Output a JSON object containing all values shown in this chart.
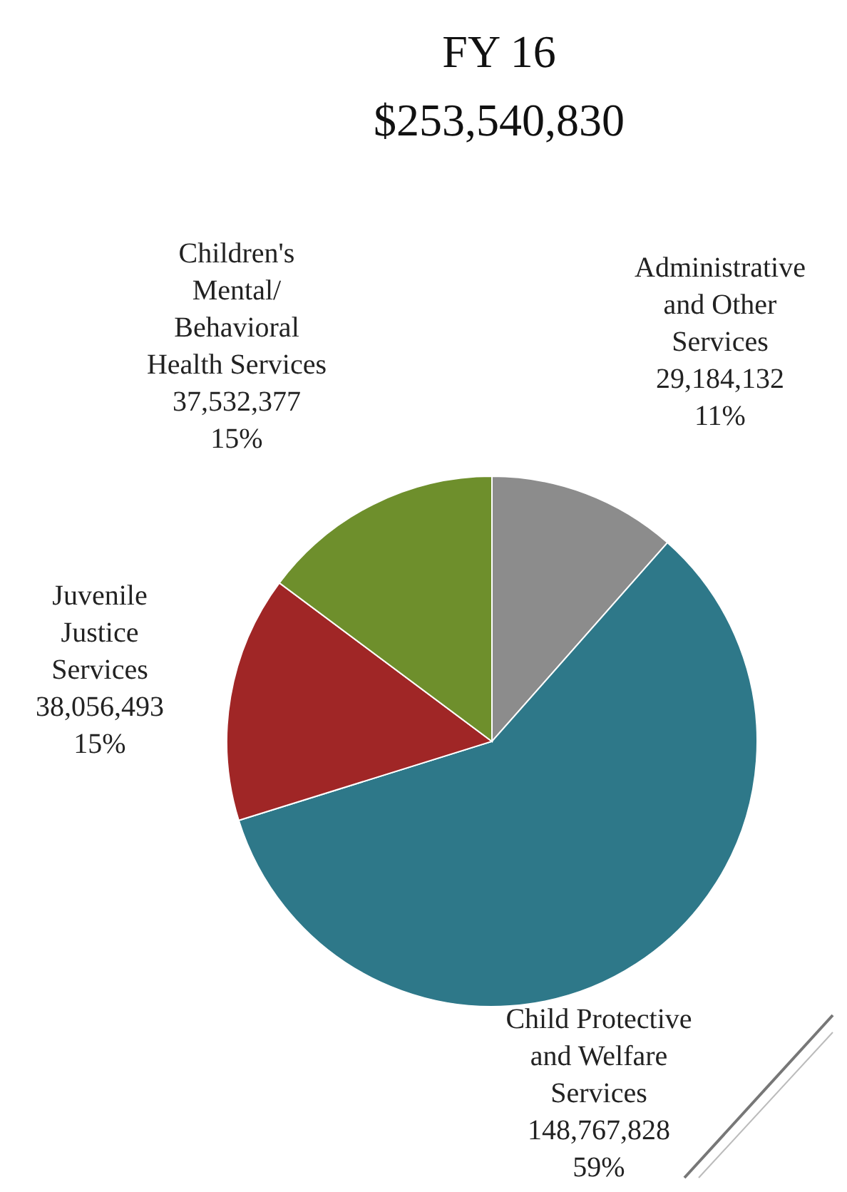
{
  "chart_data": {
    "type": "pie",
    "title": "FY 16",
    "subtitle": "$253,540,830",
    "categories": [
      "Administrative and Other Services",
      "Child Protective and Welfare Services",
      "Juvenile Justice Services",
      "Children's Mental/ Behavioral Health Services"
    ],
    "values": [
      29184132,
      148767828,
      38056493,
      37532377
    ],
    "colors": [
      "#8c8c8c",
      "#2e7889",
      "#a02626",
      "#6e8f2c"
    ],
    "value_labels": [
      "29,184,132\n11%",
      "148,767,828\n59%",
      "38,056,493\n15%",
      "37,532,377\n15%"
    ],
    "legend": false
  }
}
